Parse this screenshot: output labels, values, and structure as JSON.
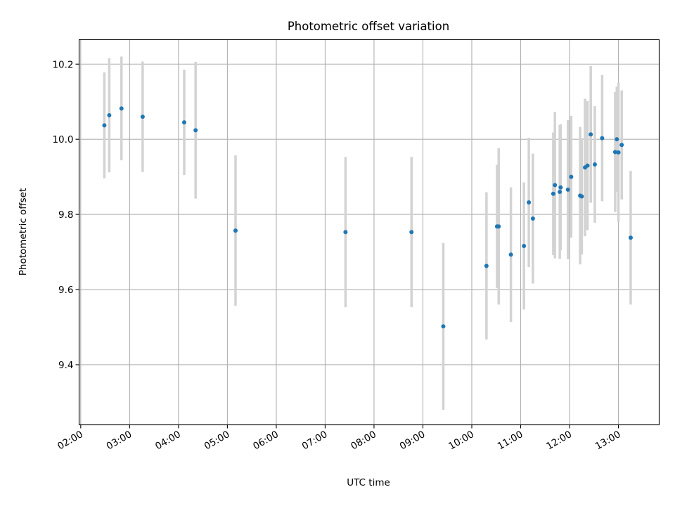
{
  "chart_data": {
    "type": "scatter",
    "title": "Photometric offset variation",
    "xlabel": "UTC time",
    "ylabel": "Photometric offset",
    "x_ticks": [
      "02:00",
      "03:00",
      "04:00",
      "05:00",
      "06:00",
      "07:00",
      "08:00",
      "09:00",
      "10:00",
      "11:00",
      "12:00",
      "13:00"
    ],
    "y_ticks": [
      "9.4",
      "9.6",
      "9.8",
      "10.0",
      "10.2"
    ],
    "xlim": [
      "01:58",
      "13:50"
    ],
    "ylim": [
      9.24,
      10.265
    ],
    "grid": true,
    "colors": {
      "points": "#1f77b4",
      "errorbars": "#d3d3d3",
      "grid": "#b0b0b0"
    },
    "points": [
      {
        "t": "02:29",
        "y": 10.037,
        "err": 0.141
      },
      {
        "t": "02:35",
        "y": 10.064,
        "err": 0.152
      },
      {
        "t": "02:50",
        "y": 10.082,
        "err": 0.138
      },
      {
        "t": "03:16",
        "y": 10.06,
        "err": 0.147
      },
      {
        "t": "04:07",
        "y": 10.045,
        "err": 0.14
      },
      {
        "t": "04:21",
        "y": 10.024,
        "err": 0.182
      },
      {
        "t": "05:10",
        "y": 9.757,
        "err": 0.2
      },
      {
        "t": "07:25",
        "y": 9.753,
        "err": 0.2
      },
      {
        "t": "08:46",
        "y": 9.753,
        "err": 0.2
      },
      {
        "t": "09:25",
        "y": 9.502,
        "err": 0.222
      },
      {
        "t": "10:18",
        "y": 9.663,
        "err": 0.196
      },
      {
        "t": "10:31",
        "y": 9.768,
        "err": 0.164
      },
      {
        "t": "10:33",
        "y": 9.768,
        "err": 0.208
      },
      {
        "t": "10:48",
        "y": 9.693,
        "err": 0.179
      },
      {
        "t": "11:04",
        "y": 9.716,
        "err": 0.169
      },
      {
        "t": "11:10",
        "y": 9.832,
        "err": 0.172
      },
      {
        "t": "11:15",
        "y": 9.789,
        "err": 0.173
      },
      {
        "t": "11:40",
        "y": 9.855,
        "err": 0.163
      },
      {
        "t": "11:42",
        "y": 9.878,
        "err": 0.195
      },
      {
        "t": "11:48",
        "y": 9.86,
        "err": 0.178
      },
      {
        "t": "11:49",
        "y": 9.872,
        "err": 0.168
      },
      {
        "t": "11:58",
        "y": 9.866,
        "err": 0.185
      },
      {
        "t": "12:02",
        "y": 9.9,
        "err": 0.162
      },
      {
        "t": "12:13",
        "y": 9.85,
        "err": 0.183
      },
      {
        "t": "12:15",
        "y": 9.848,
        "err": 0.155
      },
      {
        "t": "12:19",
        "y": 9.925,
        "err": 0.183
      },
      {
        "t": "12:22",
        "y": 9.93,
        "err": 0.172
      },
      {
        "t": "12:26",
        "y": 10.013,
        "err": 0.182
      },
      {
        "t": "12:31",
        "y": 9.933,
        "err": 0.155
      },
      {
        "t": "12:40",
        "y": 10.003,
        "err": 0.168
      },
      {
        "t": "12:56",
        "y": 9.966,
        "err": 0.16
      },
      {
        "t": "12:58",
        "y": 10.0,
        "err": 0.14
      },
      {
        "t": "13:00",
        "y": 9.965,
        "err": 0.185
      },
      {
        "t": "13:04",
        "y": 9.985,
        "err": 0.145
      },
      {
        "t": "13:15",
        "y": 9.738,
        "err": 0.178
      }
    ]
  }
}
